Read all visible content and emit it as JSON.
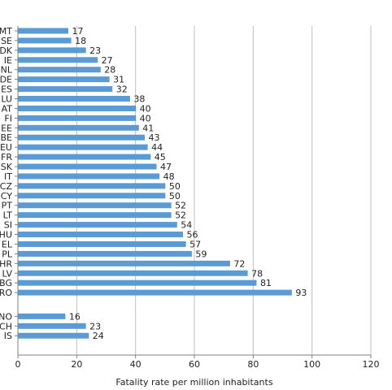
{
  "chart_data": {
    "type": "bar",
    "orientation": "horizontal",
    "xlabel": "Fatality rate per million inhabitants",
    "xlim": [
      0,
      120
    ],
    "xticks": [
      "0",
      "20",
      "40",
      "60",
      "80",
      "100",
      "120"
    ],
    "grid": "vertical",
    "bar_color": "#5b9bd5",
    "categories": [
      "MT",
      "SE",
      "DK",
      "IE",
      "NL",
      "DE",
      "ES",
      "LU",
      "AT",
      "FI",
      "EE",
      "BE",
      "EU",
      "FR",
      "SK",
      "IT",
      "CZ",
      "CY",
      "PT",
      "LT",
      "SI",
      "HU",
      "EL",
      "PL",
      "HR",
      "LV",
      "BG",
      "RO",
      "NO",
      "CH",
      "IS"
    ],
    "values": [
      17,
      18,
      23,
      27,
      28,
      31,
      32,
      38,
      40,
      40,
      41,
      43,
      44,
      45,
      47,
      48,
      50,
      50,
      52,
      52,
      54,
      56,
      57,
      59,
      72,
      78,
      81,
      93,
      16,
      23,
      24
    ],
    "group_gap_before": "NO"
  }
}
